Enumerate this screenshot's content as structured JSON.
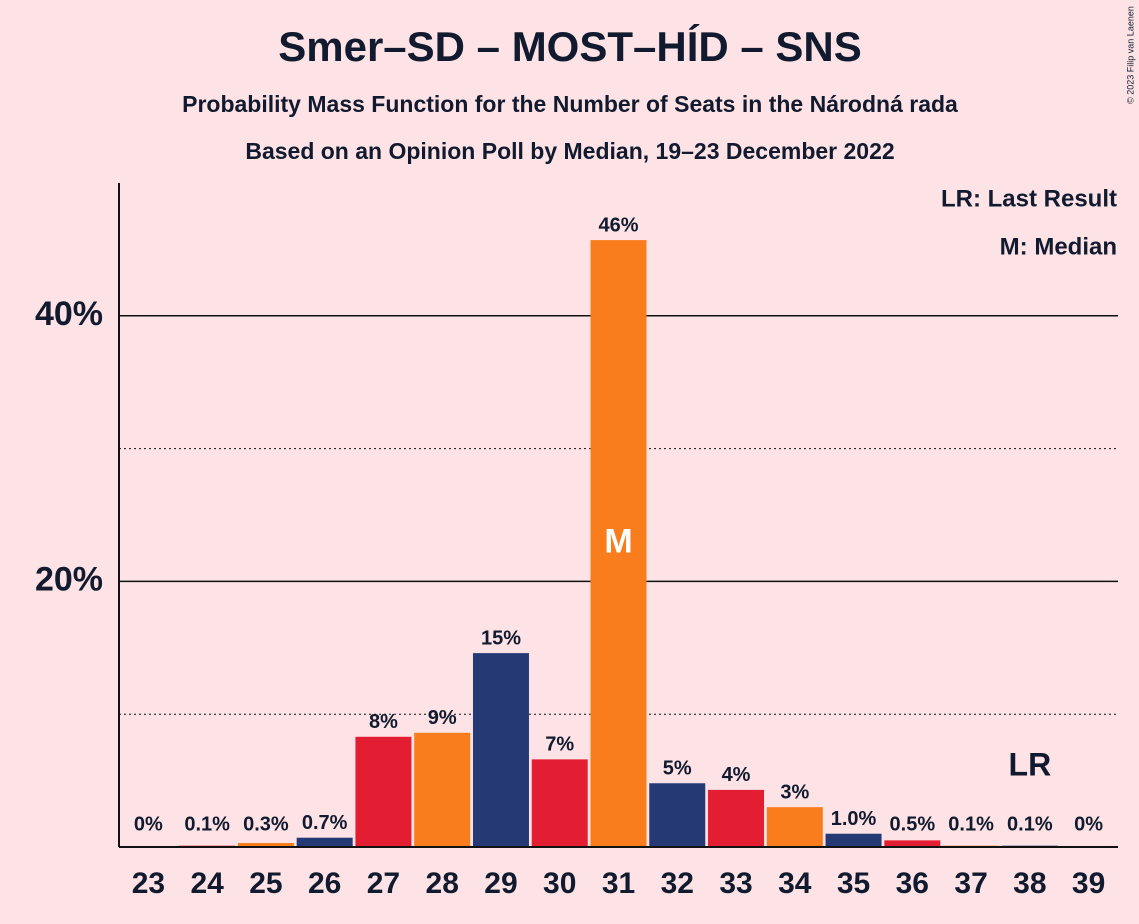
{
  "chart_data": {
    "type": "bar",
    "title": "Smer–SD – MOST–HÍD – SNS",
    "subtitle": "Probability Mass Function for the Number of Seats in the Národná rada",
    "subtitle2": "Based on an Opinion Poll by Median, 19–23 December 2022",
    "copyright": "© 2023 Filip van Laenen",
    "legend": [
      "LR: Last Result",
      "M: Median"
    ],
    "categories": [
      23,
      24,
      25,
      26,
      27,
      28,
      29,
      30,
      31,
      32,
      33,
      34,
      35,
      36,
      37,
      38,
      39
    ],
    "values": [
      0,
      0.1,
      0.3,
      0.7,
      8.3,
      8.6,
      14.6,
      6.6,
      45.7,
      4.8,
      4.3,
      3.0,
      1.0,
      0.5,
      0.1,
      0.1,
      0
    ],
    "value_labels": [
      "0%",
      "0.1%",
      "0.3%",
      "0.7%",
      "8%",
      "9%",
      "15%",
      "7%",
      "46%",
      "5%",
      "4%",
      "3%",
      "1.0%",
      "0.5%",
      "0.1%",
      "0.1%",
      "0%"
    ],
    "colors": [
      "#253a74",
      "#e41e32",
      "#f97d1c",
      "#253a74",
      "#e41e32",
      "#f97d1c",
      "#253a74",
      "#e41e32",
      "#f97d1c",
      "#253a74",
      "#e41e32",
      "#f97d1c",
      "#253a74",
      "#e41e32",
      "#f97d1c",
      "#253a74",
      "#e41e32"
    ],
    "ylim": [
      0,
      50
    ],
    "yticks": [
      {
        "value": 20,
        "label": "20%"
      },
      {
        "value": 40,
        "label": "40%"
      }
    ],
    "minor_yticks": [
      10,
      30
    ],
    "median_label": "M",
    "median_category": 31,
    "last_result_label": "LR",
    "last_result_category": 38
  }
}
